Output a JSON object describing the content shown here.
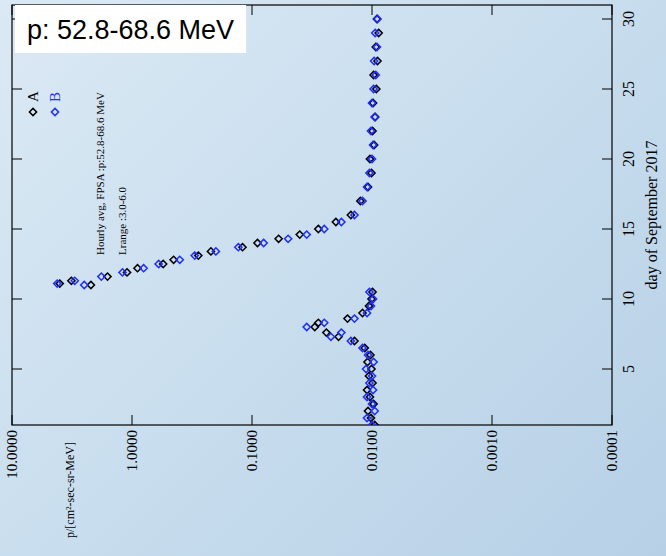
{
  "chart_data": {
    "type": "scatter",
    "title": "p: 52.8-68.6 MeV",
    "annotations": [
      "Hourly avg, FPSA :p:52.8-68.6 MeV",
      "Lrange :3.0-6.0"
    ],
    "x_label": "day of September 2017",
    "y_label": "p/[cm²-sec-sr-MeV]",
    "log": "y",
    "marker": "diamond",
    "legend": "top-left",
    "xlim": [
      1,
      31
    ],
    "xticks": [
      5,
      10,
      15,
      20,
      25,
      30
    ],
    "ylim": [
      0.0001,
      10
    ],
    "yticks": [
      {
        "value": 0.0001,
        "label": "0.0001"
      },
      {
        "value": 0.001,
        "label": "0.0010"
      },
      {
        "value": 0.01,
        "label": "0.0100"
      },
      {
        "value": 0.1,
        "label": "0.1000"
      },
      {
        "value": 1,
        "label": "1.0000"
      },
      {
        "value": 10,
        "label": "10.0000"
      }
    ],
    "x": [
      1,
      1.5,
      2,
      2.5,
      3,
      3.5,
      4,
      4.5,
      5,
      5.5,
      6,
      6.5,
      7,
      7.3,
      7.6,
      8,
      8.3,
      8.6,
      9,
      9.5,
      10,
      10.5,
      11,
      11.1,
      11.3,
      11.6,
      11.9,
      12.2,
      12.5,
      12.8,
      13.1,
      13.4,
      13.7,
      14,
      14.3,
      14.6,
      15,
      15.5,
      16,
      17,
      18,
      19,
      20,
      21,
      22,
      23,
      24,
      25,
      26,
      27,
      28,
      29,
      30
    ],
    "series": [
      {
        "name": "A",
        "color": "#000000",
        "values": [
          0.0095,
          0.0102,
          0.0108,
          0.0097,
          0.0104,
          0.011,
          0.0099,
          0.0106,
          0.0101,
          0.0109,
          0.0103,
          0.0115,
          0.014,
          0.019,
          0.024,
          0.03,
          0.028,
          0.016,
          0.012,
          0.0106,
          0.0101,
          0.0099,
          2.2,
          4.0,
          3.2,
          1.6,
          1.1,
          0.9,
          0.55,
          0.45,
          0.28,
          0.22,
          0.12,
          0.09,
          0.06,
          0.04,
          0.028,
          0.02,
          0.015,
          0.0125,
          0.0108,
          0.0101,
          0.0104,
          0.0096,
          0.0099,
          0.0094,
          0.0098,
          0.0092,
          0.0097,
          0.009,
          0.0093,
          0.0088,
          0.0091
        ]
      },
      {
        "name": "B",
        "color": "#1f2fff",
        "values": [
          0.01,
          0.011,
          0.0095,
          0.01,
          0.011,
          0.0098,
          0.0105,
          0.01,
          0.0112,
          0.0097,
          0.0108,
          0.012,
          0.015,
          0.022,
          0.018,
          0.035,
          0.025,
          0.014,
          0.011,
          0.0102,
          0.0098,
          0.0105,
          2.5,
          4.2,
          3.0,
          1.8,
          1.2,
          0.8,
          0.6,
          0.4,
          0.3,
          0.2,
          0.13,
          0.08,
          0.05,
          0.035,
          0.025,
          0.018,
          0.014,
          0.012,
          0.011,
          0.0105,
          0.01,
          0.0098,
          0.0102,
          0.0095,
          0.01,
          0.0097,
          0.0093,
          0.0096,
          0.0091,
          0.0094,
          0.009
        ]
      }
    ]
  }
}
